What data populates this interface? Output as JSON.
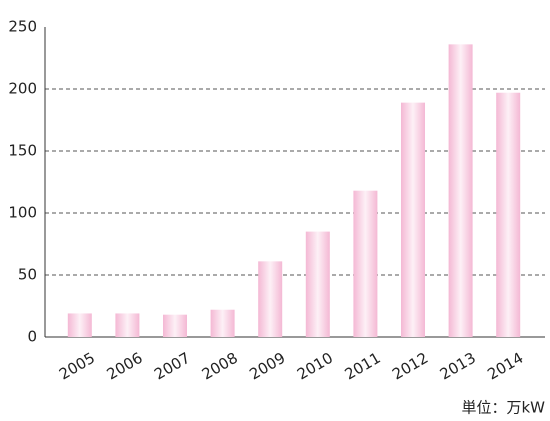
{
  "chart_data": {
    "type": "bar",
    "unit_label": "単位：万kW",
    "categories": [
      "2005",
      "2006",
      "2007",
      "2008",
      "2009",
      "2010",
      "2011",
      "2012",
      "2013",
      "2014"
    ],
    "values": [
      19,
      19,
      18,
      22,
      61,
      85,
      118,
      189,
      236,
      197
    ],
    "color": "#f4b8d4",
    "ylim": [
      0,
      250
    ],
    "yticks": [
      0,
      50,
      100,
      150,
      200,
      250
    ],
    "grid": true
  }
}
